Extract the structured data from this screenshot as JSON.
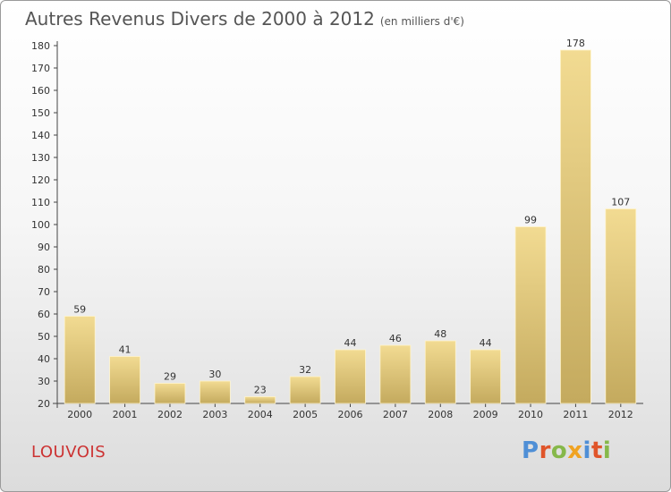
{
  "header": {
    "title": "Autres Revenus Divers de 2000 à 2012",
    "subtitle": "(en milliers d'€)"
  },
  "footer": {
    "city": "LOUVOIS",
    "logo_text": "Proxiti"
  },
  "colors": {
    "bar_light": "#f2db92",
    "bar_dark": "#c4aa5e",
    "logo_letters": [
      "#4f8fd6",
      "#e0552a",
      "#86b84a",
      "#f0a322",
      "#4f8fd6",
      "#e0552a",
      "#86b84a"
    ]
  },
  "chart_data": {
    "type": "bar",
    "title": "Autres Revenus Divers de 2000 à 2012",
    "subtitle": "(en milliers d'€)",
    "categories": [
      "2000",
      "2001",
      "2002",
      "2003",
      "2004",
      "2005",
      "2006",
      "2007",
      "2008",
      "2009",
      "2010",
      "2011",
      "2012"
    ],
    "values": [
      59,
      41,
      29,
      30,
      23,
      32,
      44,
      46,
      48,
      44,
      99,
      178,
      107
    ],
    "ylim": [
      20,
      180
    ],
    "yticks": [
      20,
      30,
      40,
      50,
      60,
      70,
      80,
      90,
      100,
      110,
      120,
      130,
      140,
      150,
      160,
      170,
      180
    ],
    "grid": false,
    "data_labels": true
  }
}
